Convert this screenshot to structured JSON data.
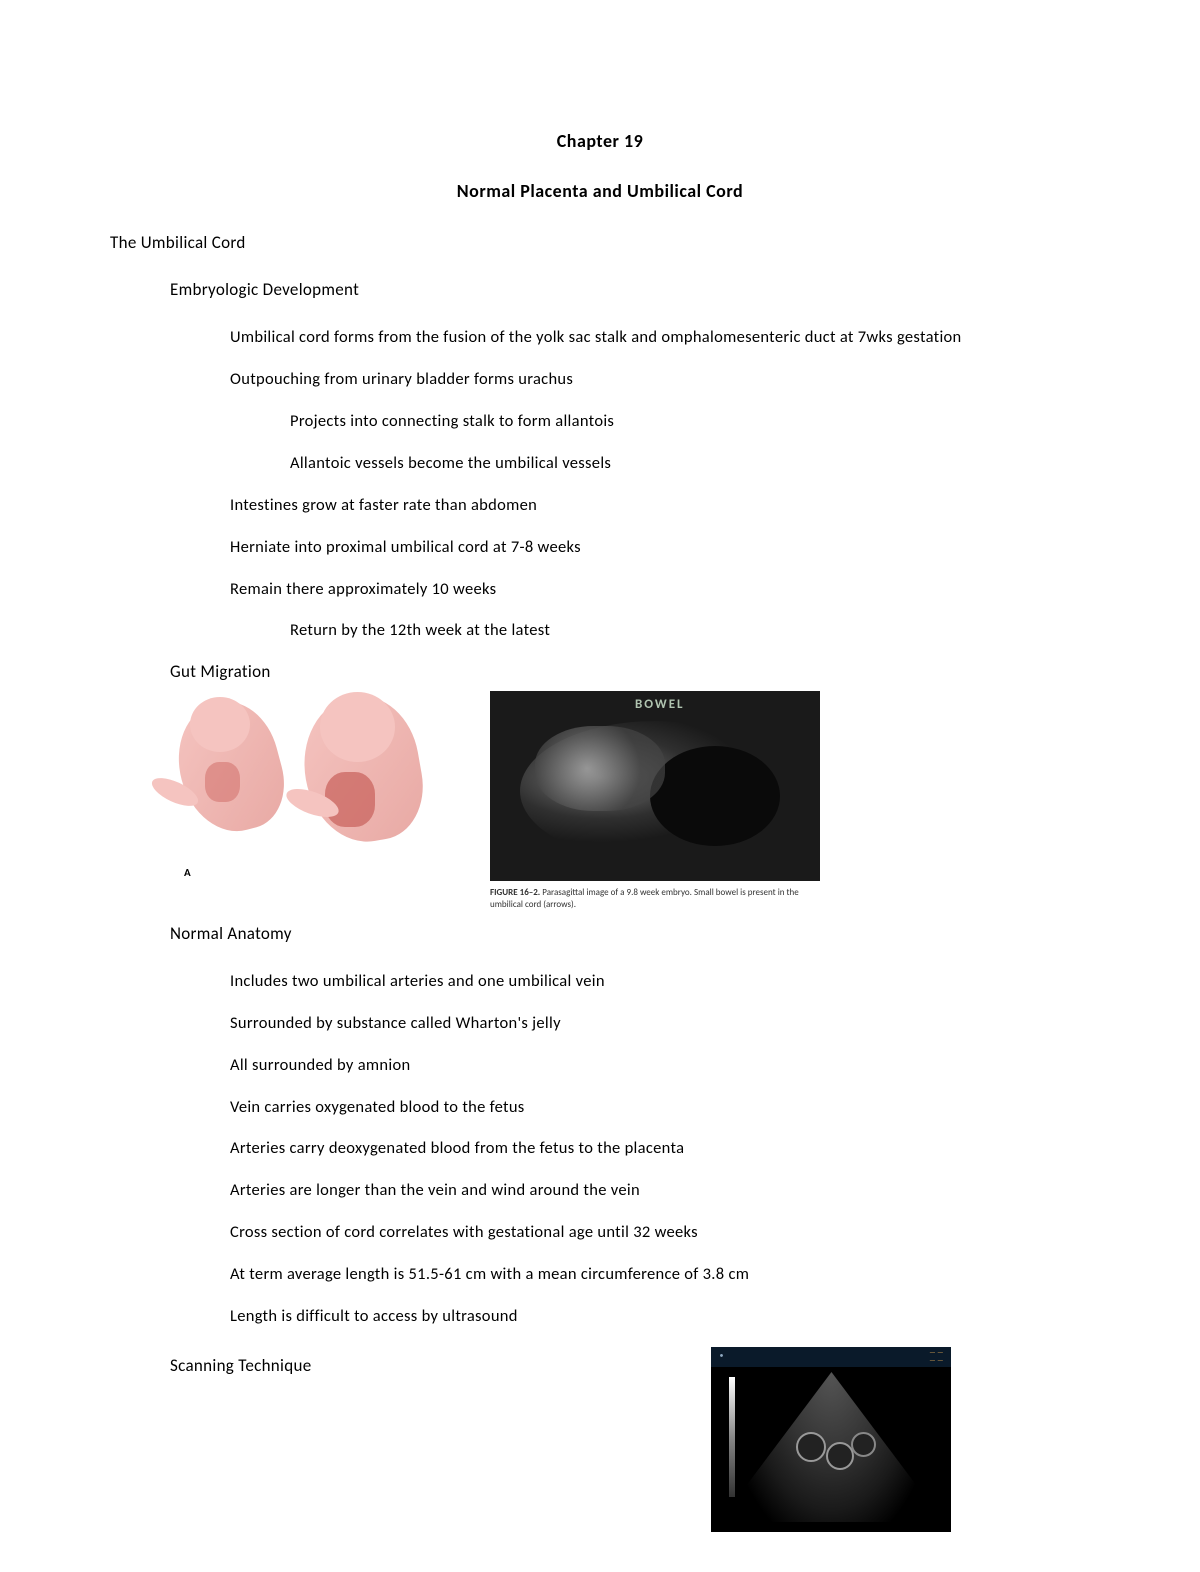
{
  "chapter_title": "Chapter 19",
  "subtitle": "Normal Placenta and Umbilical Cord",
  "section_umbilical": "The Umbilical Cord",
  "embryologic_dev": "Embryologic Development",
  "lines": {
    "l1": "Umbilical cord forms from the fusion of the yolk sac stalk and omphalomesenteric duct at 7wks gestation",
    "l2": "Outpouching from urinary bladder forms urachus",
    "l3": "Projects into connecting stalk to form allantois",
    "l4": "Allantoic vessels become the umbilical vessels",
    "l5": "Intestines grow at faster rate than abdomen",
    "l6": "Herniate into proximal umbilical cord at 7-8 weeks",
    "l7": "Remain there approximately 10 weeks",
    "l8": "Return by the 12th week at the latest"
  },
  "gut_migration": "Gut Migration",
  "fig_a": "A",
  "us_bowel": "BOWEL",
  "us_caption_prefix": "FIGURE 16–2.",
  "us_caption_body": " Parasagittal image of a 9.8 week embryo. Small bowel is present in the umbilical cord (arrows).",
  "normal_anatomy": "Normal Anatomy",
  "anatomy": {
    "a1": "Includes two umbilical arteries and one umbilical vein",
    "a2": "Surrounded by substance called Wharton's jelly",
    "a3": "All surrounded by amnion",
    "a4": "Vein carries oxygenated blood to the fetus",
    "a5": "Arteries carry deoxygenated blood from the fetus to the placenta",
    "a6": "Arteries are longer than the vein and wind around the vein",
    "a7": "Cross section of cord correlates with gestational age until 32 weeks",
    "a8": "At term average length is 51.5-61 cm with a mean circumference of 3.8 cm",
    "a9": "Length is difficult to access by ultrasound"
  },
  "scanning_technique": "Scanning Technique",
  "colors": {
    "page_bg": "#ffffff",
    "text": "#000000",
    "embryo_light": "#f5c4c0",
    "embryo_dark": "#e8a9a4",
    "embryo_gut": "#c85f5a",
    "ultrasound_bg": "#1a1a1a",
    "us_label": "#b0c4b0"
  }
}
